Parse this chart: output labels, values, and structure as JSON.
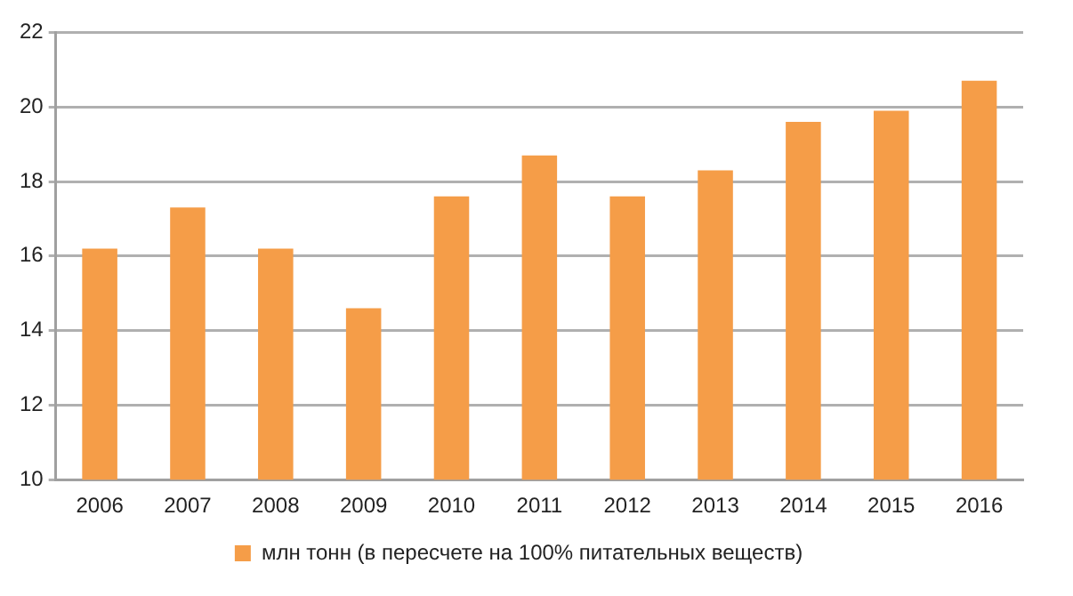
{
  "chart_data": {
    "type": "bar",
    "categories": [
      "2006",
      "2007",
      "2008",
      "2009",
      "2010",
      "2011",
      "2012",
      "2013",
      "2014",
      "2015",
      "2016"
    ],
    "series": [
      {
        "name": "млн тонн (в пересчете на 100% питательных веществ)",
        "color": "#f59d48",
        "values": [
          16.2,
          17.3,
          16.2,
          14.6,
          17.6,
          18.7,
          17.6,
          18.3,
          19.6,
          19.9,
          20.7
        ]
      }
    ],
    "ylim": [
      10,
      22
    ],
    "yticks": [
      10,
      12,
      14,
      16,
      18,
      20,
      22
    ],
    "grid": "y",
    "legend": "bottom"
  }
}
